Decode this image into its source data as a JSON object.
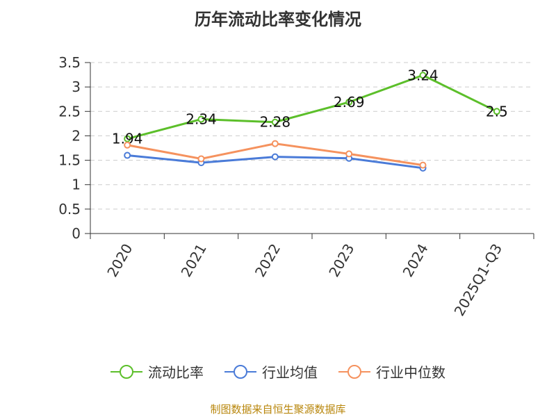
{
  "title": "历年流动比率变化情况",
  "source_note": "制图数据来自恒生聚源数据库",
  "colors": {
    "current_ratio": "#5cbf2a",
    "industry_avg": "#4a7bd8",
    "industry_median": "#f5925e"
  },
  "chart_data": {
    "type": "line",
    "title": "历年流动比率变化情况",
    "categories": [
      "2020",
      "2021",
      "2022",
      "2023",
      "2024",
      "2025Q1-Q3"
    ],
    "ylim": [
      0,
      3.5
    ],
    "yticks": [
      "0",
      "0.5",
      "1",
      "1.5",
      "2",
      "2.5",
      "3",
      "3.5"
    ],
    "grid": true,
    "legend_position": "bottom",
    "series": [
      {
        "name": "流动比率",
        "color": "#5cbf2a",
        "values": [
          1.94,
          2.34,
          2.28,
          2.69,
          3.24,
          2.5
        ],
        "labels": [
          "1.94",
          "2.34",
          "2.28",
          "2.69",
          "3.24",
          "2.5"
        ]
      },
      {
        "name": "行业均值",
        "color": "#4a7bd8",
        "values": [
          1.6,
          1.45,
          1.57,
          1.54,
          1.34,
          null
        ]
      },
      {
        "name": "行业中位数",
        "color": "#f5925e",
        "values": [
          1.81,
          1.53,
          1.84,
          1.63,
          1.4,
          null
        ]
      }
    ]
  }
}
